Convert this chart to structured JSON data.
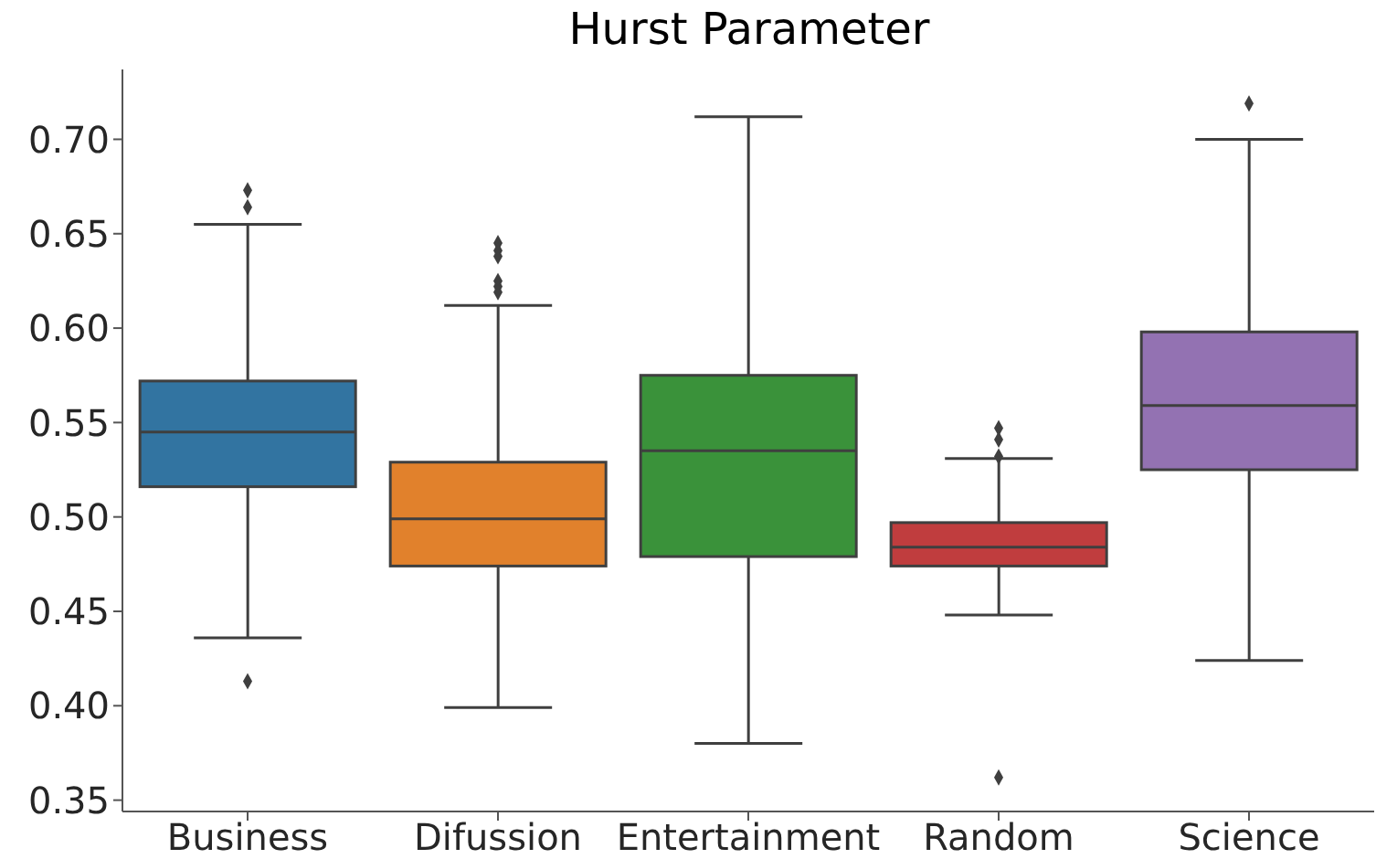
{
  "chart_data": {
    "type": "box",
    "title": "Hurst Parameter",
    "categories": [
      "Business",
      "Difussion",
      "Entertainment",
      "Random",
      "Science"
    ],
    "colors": [
      "#3274a1",
      "#e1812c",
      "#3a923a",
      "#c03d3e",
      "#9372b2"
    ],
    "boxes": [
      {
        "low": 0.436,
        "q1": 0.516,
        "median": 0.545,
        "q3": 0.572,
        "high": 0.655,
        "outliers": [
          0.673,
          0.664,
          0.413
        ]
      },
      {
        "low": 0.399,
        "q1": 0.474,
        "median": 0.499,
        "q3": 0.529,
        "high": 0.612,
        "outliers": [
          0.645,
          0.641,
          0.638,
          0.625,
          0.622,
          0.619
        ]
      },
      {
        "low": 0.38,
        "q1": 0.479,
        "median": 0.535,
        "q3": 0.575,
        "high": 0.712
      },
      {
        "low": 0.448,
        "q1": 0.474,
        "median": 0.484,
        "q3": 0.497,
        "high": 0.531,
        "outliers": [
          0.547,
          0.541,
          0.532,
          0.362
        ]
      },
      {
        "low": 0.424,
        "q1": 0.525,
        "median": 0.559,
        "q3": 0.598,
        "high": 0.7,
        "outliers": [
          0.719
        ]
      }
    ],
    "ylim": [
      0.344,
      0.737
    ],
    "yticks": [
      0.35,
      {
        "value": 0.4,
        "label": "0.40"
      },
      0.45,
      {
        "value": 0.5,
        "label": "0.50"
      },
      0.55,
      {
        "value": 0.6,
        "label": "0.60"
      },
      0.65,
      {
        "value": 0.7,
        "label": "0.70"
      }
    ]
  }
}
